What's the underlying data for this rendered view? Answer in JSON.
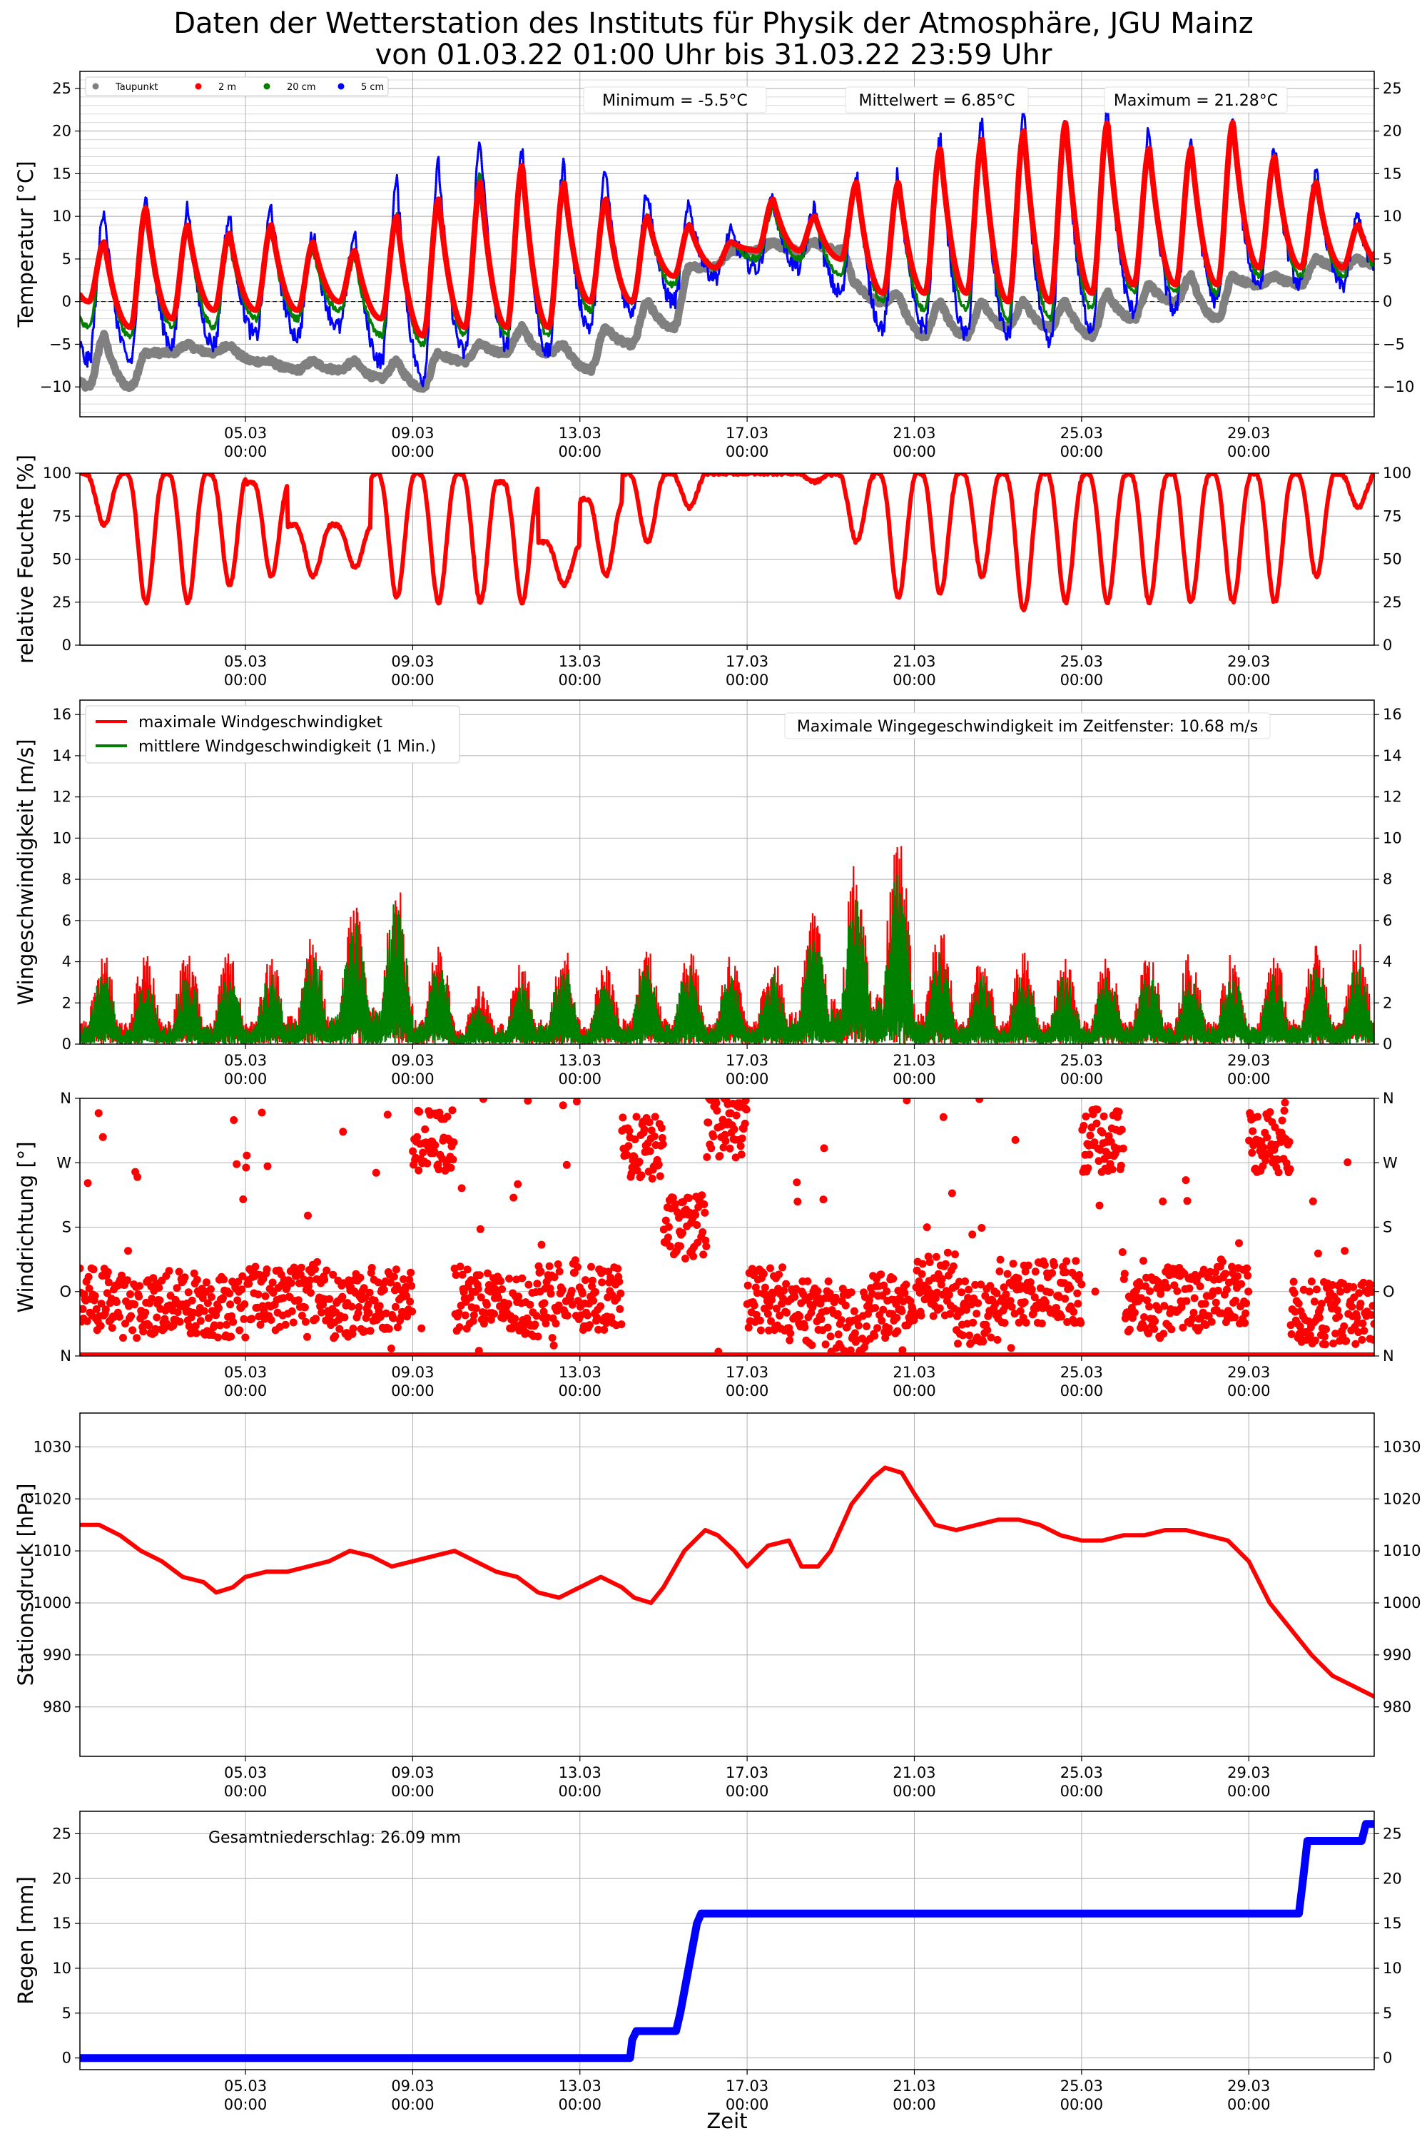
{
  "title_line1": "Daten der Wetterstation des Instituts für Physik der Atmosphäre, JGU Mainz",
  "title_line2": "von 01.03.22 01:00 Uhr bis 31.03.22 23:59 Uhr",
  "x_axis": {
    "label": "Zeit",
    "tick_dates": [
      "05.03",
      "09.03",
      "13.03",
      "17.03",
      "21.03",
      "25.03",
      "29.03"
    ],
    "tick_time": "00:00",
    "tick_days": [
      5,
      9,
      13,
      17,
      21,
      25,
      29
    ],
    "range_days": [
      1.04,
      32.0
    ]
  },
  "chart_data": [
    {
      "id": "temperature",
      "type": "scatter",
      "ylabel": "Temperatur [°C]",
      "ylim": [
        -13.5,
        27
      ],
      "yticks": [
        -10,
        -5,
        0,
        5,
        10,
        15,
        20,
        25
      ],
      "minor_grid": true,
      "zero_line": true,
      "legend_placement": "upper-left",
      "stats": [
        "Minimum = -5.5°C",
        "Mittelwert = 6.85°C",
        "Maximum = 21.28°C"
      ],
      "series": [
        {
          "name": "Taupunkt",
          "color": "#808080",
          "key": "dew",
          "daily_min": [
            -10,
            -10,
            -6,
            -6,
            -7,
            -8,
            -8,
            -9,
            -10,
            -7,
            -6,
            -6,
            -8,
            -5,
            -3,
            4,
            6,
            6,
            6,
            0,
            -4,
            -4,
            -3,
            -3,
            -4,
            -2,
            0,
            -2,
            2,
            2,
            4
          ],
          "daily_max": [
            -4,
            -6,
            -5,
            -5,
            -7,
            -7,
            -7,
            -7,
            -6,
            -5,
            -3,
            -5,
            -3,
            0,
            4,
            6,
            7,
            7,
            2,
            1,
            0,
            0,
            0,
            0,
            1,
            2,
            3,
            3,
            3,
            5,
            5
          ]
        },
        {
          "name": "2 m",
          "color": "#ff0000",
          "key": "t2m",
          "daily_min": [
            0,
            -3,
            -2,
            -1,
            -1,
            -1,
            0,
            -2,
            -4,
            -3,
            -3,
            -3,
            0,
            0,
            3,
            4,
            6,
            6,
            5,
            1,
            1,
            1,
            0,
            0,
            1,
            2,
            2,
            2,
            4,
            4,
            4
          ],
          "daily_max": [
            7,
            11,
            9,
            8,
            9,
            7,
            6,
            10,
            12,
            14,
            16,
            14,
            12,
            10,
            9,
            7,
            12,
            10,
            14,
            14,
            18,
            19,
            20,
            21,
            21,
            18,
            18,
            21,
            17,
            14,
            9
          ]
        },
        {
          "name": "20 cm",
          "color": "#008000",
          "key": "t20",
          "daily_min": [
            -3,
            -4,
            -3,
            -3,
            -2,
            -2,
            -1,
            -4,
            -5,
            -4,
            -4,
            -4,
            -1,
            0,
            2,
            4,
            5,
            5,
            3,
            0,
            -1,
            -1,
            -2,
            -2,
            -1,
            1,
            1,
            1,
            3,
            3,
            3
          ],
          "daily_max": [
            7,
            10,
            9,
            7,
            8,
            6,
            5,
            10,
            12,
            15,
            16,
            14,
            12,
            10,
            9,
            7,
            11,
            10,
            14,
            14,
            18,
            19,
            20,
            21,
            21,
            18,
            18,
            21,
            17,
            14,
            9
          ]
        },
        {
          "name": "5 cm",
          "color": "#0000ff",
          "key": "t5",
          "daily_min": [
            -7,
            -7,
            -5,
            -5,
            -4,
            -4,
            -3,
            -7,
            -9,
            -6,
            -5,
            -6,
            -3,
            -1,
            0,
            3,
            4,
            4,
            1,
            -3,
            -3,
            -4,
            -4,
            -5,
            -3,
            -1,
            -1,
            0,
            2,
            2,
            2
          ],
          "daily_max": [
            11,
            13,
            11,
            10,
            11,
            8,
            8,
            14,
            16,
            19,
            18,
            16,
            15,
            13,
            11,
            8,
            12,
            11,
            15,
            15,
            19,
            21,
            22,
            21,
            22,
            20,
            19,
            21,
            18,
            15,
            10
          ]
        }
      ]
    },
    {
      "id": "humidity",
      "type": "scatter",
      "ylabel": "relative Feuchte [%]",
      "ylim": [
        0,
        100
      ],
      "yticks": [
        0,
        25,
        50,
        75,
        100
      ],
      "series": [
        {
          "name": "relative Feuchte",
          "color": "#ff0000",
          "key": "rh",
          "daily_min": [
            70,
            25,
            25,
            35,
            40,
            40,
            45,
            28,
            25,
            25,
            25,
            35,
            40,
            60,
            80,
            100,
            100,
            95,
            60,
            28,
            30,
            40,
            20,
            25,
            25,
            25,
            25,
            25,
            25,
            40,
            80
          ],
          "daily_max": [
            100,
            100,
            100,
            100,
            95,
            70,
            70,
            100,
            100,
            100,
            95,
            60,
            85,
            100,
            100,
            100,
            100,
            100,
            100,
            100,
            100,
            100,
            100,
            100,
            100,
            100,
            100,
            100,
            100,
            100,
            100
          ]
        }
      ]
    },
    {
      "id": "wind_speed",
      "type": "area",
      "ylabel": "Wingeschwindigkeit [m/s]",
      "ylim": [
        0,
        16.7
      ],
      "yticks": [
        0,
        2,
        4,
        6,
        8,
        10,
        12,
        14,
        16
      ],
      "legend_placement": "upper-left",
      "annotation": "Maximale Wingegeschwindigkeit im Zeitfenster: 10.68 m/s",
      "series": [
        {
          "name": "maximale Windgeschwindigket",
          "color": "#ff0000",
          "key": "wmax",
          "daily_max": [
            4.5,
            4.5,
            4.5,
            4.5,
            4.5,
            5.5,
            7,
            8,
            5,
            3,
            4,
            5,
            4,
            5,
            5,
            4.5,
            4.5,
            6.5,
            9,
            10.68,
            6,
            4.5,
            4.5,
            4.5,
            4.5,
            4.5,
            4.5,
            4.5,
            4.5,
            5,
            5
          ]
        },
        {
          "name": "mittlere Windgeschwindigkeit (1 Min.)",
          "color": "#008000",
          "key": "wmean",
          "daily_max": [
            3.5,
            3,
            3.5,
            3.5,
            3.5,
            4.5,
            6,
            7,
            4,
            2,
            3,
            4,
            3,
            4,
            4,
            3.5,
            3.5,
            5.5,
            7.5,
            8.5,
            4.5,
            3.5,
            3.5,
            3.5,
            3.5,
            3.5,
            3.5,
            3.5,
            3.5,
            4,
            4
          ]
        }
      ]
    },
    {
      "id": "wind_direction",
      "type": "scatter",
      "ylabel": "Windrichtung [°]",
      "ylim": [
        0,
        360
      ],
      "yticks": [
        0,
        90,
        180,
        270,
        360
      ],
      "ytick_labels": [
        "N",
        "O",
        "S",
        "W",
        "N"
      ],
      "series": [
        {
          "name": "Windrichtung",
          "color": "#ff0000",
          "key": "wdir",
          "daily_center": [
            80,
            70,
            75,
            70,
            80,
            90,
            70,
            80,
            300,
            80,
            70,
            90,
            80,
            290,
            180,
            320,
            80,
            60,
            50,
            70,
            100,
            60,
            90,
            90,
            300,
            70,
            80,
            90,
            300,
            60,
            60
          ]
        }
      ]
    },
    {
      "id": "pressure",
      "type": "line",
      "ylabel": "Stationsdruck [hPa]",
      "ylim": [
        970.5,
        1036.5
      ],
      "yticks": [
        980,
        990,
        1000,
        1010,
        1020,
        1030
      ],
      "series": [
        {
          "name": "Stationsdruck",
          "color": "#ff0000",
          "key": "p",
          "x": [
            1.04,
            1.5,
            2,
            2.5,
            3,
            3.5,
            4,
            4.3,
            4.7,
            5,
            5.5,
            6,
            6.5,
            7,
            7.5,
            8,
            8.5,
            9,
            9.5,
            10,
            10.5,
            11,
            11.5,
            12,
            12.5,
            13,
            13.5,
            14,
            14.3,
            14.7,
            15,
            15.5,
            16,
            16.3,
            16.7,
            17,
            17.5,
            18,
            18.3,
            18.7,
            19,
            19.5,
            20,
            20.3,
            20.7,
            21,
            21.5,
            22,
            22.5,
            23,
            23.5,
            24,
            24.5,
            25,
            25.5,
            26,
            26.5,
            27,
            27.5,
            28,
            28.5,
            29,
            29.5,
            30,
            30.5,
            31,
            31.5,
            32
          ],
          "y": [
            1015,
            1015,
            1013,
            1010,
            1008,
            1005,
            1004,
            1002,
            1003,
            1005,
            1006,
            1006,
            1007,
            1008,
            1010,
            1009,
            1007,
            1008,
            1009,
            1010,
            1008,
            1006,
            1005,
            1002,
            1001,
            1003,
            1005,
            1003,
            1001,
            1000,
            1003,
            1010,
            1014,
            1013,
            1010,
            1007,
            1011,
            1012,
            1007,
            1007,
            1010,
            1019,
            1024,
            1026,
            1025,
            1021,
            1015,
            1014,
            1015,
            1016,
            1016,
            1015,
            1013,
            1012,
            1012,
            1013,
            1013,
            1014,
            1014,
            1013,
            1012,
            1008,
            1000,
            995,
            990,
            986,
            984,
            982
          ]
        }
      ]
    },
    {
      "id": "rain",
      "type": "line",
      "ylabel": "Regen [mm]",
      "ylim": [
        -1.3,
        27.5
      ],
      "yticks": [
        0,
        5,
        10,
        15,
        20,
        25
      ],
      "annotation": "Gesamtniederschlag: 26.09 mm",
      "series": [
        {
          "name": "Regen",
          "color": "#0000ff",
          "key": "rain",
          "x": [
            1.04,
            14.2,
            14.25,
            14.35,
            15.3,
            15.4,
            15.6,
            15.8,
            15.9,
            30.2,
            30.3,
            30.4,
            31.7,
            31.8,
            32.0
          ],
          "y": [
            0,
            0,
            2.0,
            3.0,
            3.0,
            5.0,
            10.0,
            15.0,
            16.1,
            16.1,
            20.0,
            24.2,
            24.2,
            26.09,
            26.09
          ]
        }
      ]
    }
  ]
}
